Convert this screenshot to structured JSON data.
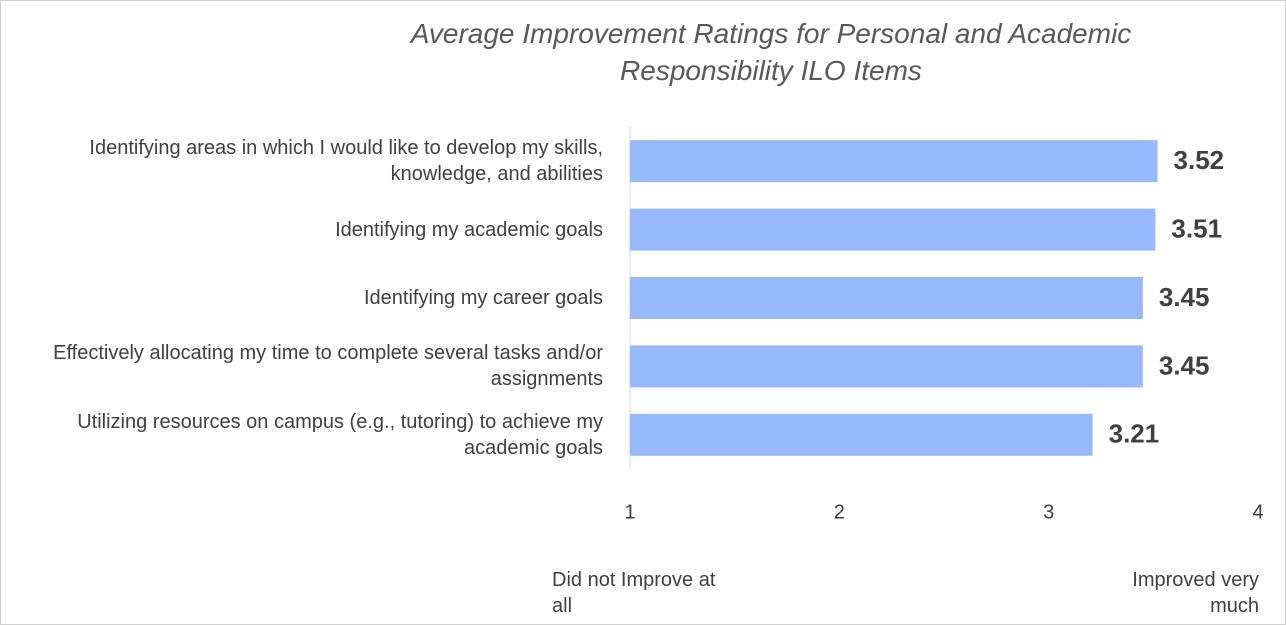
{
  "chart_data": {
    "type": "bar",
    "orientation": "horizontal",
    "title": "Average Improvement Ratings for Personal and Academic Responsibility ILO Items",
    "categories": [
      "Identifying areas in which I would like to develop my skills, knowledge, and abilities",
      "Identifying my academic goals",
      "Identifying my career goals",
      "Effectively allocating my time to complete several tasks and/or assignments",
      "Utilizing resources on campus (e.g., tutoring) to achieve my academic goals"
    ],
    "values": [
      3.52,
      3.51,
      3.45,
      3.45,
      3.21
    ],
    "color": "#99b9ff",
    "xlim": [
      1,
      4
    ],
    "xticks": [
      1,
      2,
      3,
      4
    ],
    "annotations": [
      "Did not Improve at all",
      "Improved very much"
    ],
    "grid": false
  }
}
